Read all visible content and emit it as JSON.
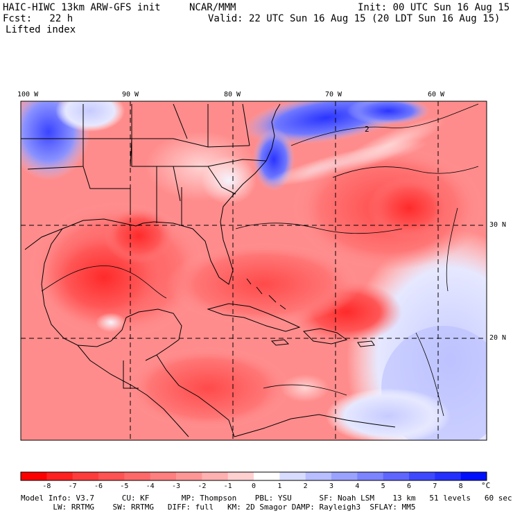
{
  "header": {
    "model_title": "HAIC-HIWC 13km ARW-GFS init",
    "org": "NCAR/MMM",
    "init": "Init: 00 UTC Sun 16 Aug 15",
    "fcst": "Fcst:   22 h",
    "valid": "Valid: 22 UTC Sun 16 Aug 15 (20 LDT Sun 16 Aug 15)",
    "field": "Lifted index"
  },
  "map": {
    "lon_labels": [
      "100 W",
      "90 W",
      "80 W",
      "70 W",
      "60 W"
    ],
    "lat_labels": [
      "30 N",
      "20 N"
    ],
    "contour_label": "2"
  },
  "colorbar": {
    "unit": "°C",
    "ticks": [
      "-8",
      "-7",
      "-6",
      "-5",
      "-4",
      "-3",
      "-2",
      "-1",
      "0",
      "1",
      "2",
      "3",
      "4",
      "5",
      "6",
      "7",
      "8"
    ],
    "colors": [
      "#ff0000",
      "#ff2020",
      "#ff3c3c",
      "#ff5252",
      "#ff6868",
      "#ff7e7e",
      "#ff9696",
      "#ffb0b0",
      "#ffd0d0",
      "#ffffff",
      "#d8dcff",
      "#b8beff",
      "#9aa2ff",
      "#7c84ff",
      "#5e66ff",
      "#3e48ff",
      "#2430ff",
      "#0010ff"
    ]
  },
  "footer": {
    "line1": "Model Info: V3.7      CU: KF       MP: Thompson    PBL: YSU      SF: Noah LSM    13 km   51 levels   60 sec",
    "line2": "       LW: RRTMG    SW: RRTMG   DIFF: full   KM: 2D Smagor DAMP: Rayleigh3  SFLAY: MM5"
  }
}
